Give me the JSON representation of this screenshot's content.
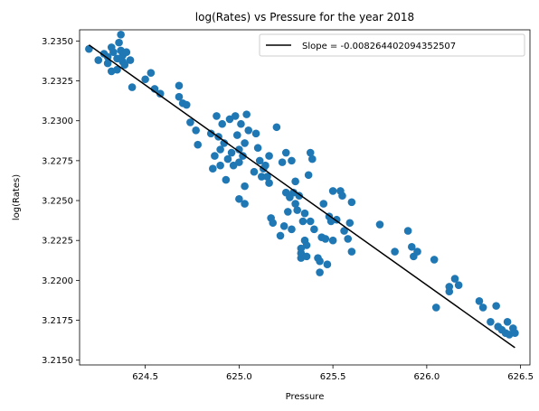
{
  "chart_data": {
    "type": "scatter",
    "title": "log(Rates) vs Pressure for the year 2018",
    "xlabel": "Pressure",
    "ylabel": "log(Rates)",
    "xlim": [
      624.15,
      626.55
    ],
    "ylim": [
      3.2147,
      3.2357
    ],
    "x_ticks": [
      624.5,
      625.0,
      625.5,
      626.0,
      626.5
    ],
    "x_tick_labels": [
      "624.5",
      "625.0",
      "625.5",
      "626.0",
      "626.5"
    ],
    "y_ticks": [
      3.215,
      3.2175,
      3.22,
      3.2225,
      3.225,
      3.2275,
      3.23,
      3.2325,
      3.235
    ],
    "y_tick_labels": [
      "3.2150",
      "3.2175",
      "3.2200",
      "3.2225",
      "3.2250",
      "3.2275",
      "3.2300",
      "3.2325",
      "3.2350"
    ],
    "grid": false,
    "legend": {
      "location": "top-right",
      "entries": [
        "Slope = -0.008264402094352507"
      ]
    },
    "colors": {
      "points": "#1f77b4",
      "fit_line": "#000000"
    },
    "fit_line": {
      "name": "Slope = -0.008264402094352507",
      "x": [
        624.2,
        626.47
      ],
      "y": [
        3.23475,
        3.21578
      ]
    },
    "series": [
      {
        "points": [
          [
            624.2,
            3.2345
          ],
          [
            624.25,
            3.2338
          ],
          [
            624.28,
            3.2342
          ],
          [
            624.3,
            3.2336
          ],
          [
            624.3,
            3.234
          ],
          [
            624.32,
            3.2331
          ],
          [
            624.32,
            3.2346
          ],
          [
            624.33,
            3.2343
          ],
          [
            624.35,
            3.2339
          ],
          [
            624.35,
            3.2332
          ],
          [
            624.36,
            3.2349
          ],
          [
            624.37,
            3.2354
          ],
          [
            624.37,
            3.2344
          ],
          [
            624.38,
            3.2341
          ],
          [
            624.38,
            3.2337
          ],
          [
            624.39,
            3.2335
          ],
          [
            624.4,
            3.2343
          ],
          [
            624.42,
            3.2338
          ],
          [
            624.43,
            3.2321
          ],
          [
            624.5,
            3.2326
          ],
          [
            624.53,
            3.233
          ],
          [
            624.55,
            3.232
          ],
          [
            624.58,
            3.2317
          ],
          [
            624.68,
            3.2322
          ],
          [
            624.68,
            3.2315
          ],
          [
            624.7,
            3.2311
          ],
          [
            624.72,
            3.231
          ],
          [
            624.74,
            3.2299
          ],
          [
            624.77,
            3.2294
          ],
          [
            624.78,
            3.2285
          ],
          [
            624.85,
            3.2292
          ],
          [
            624.86,
            3.227
          ],
          [
            624.87,
            3.2278
          ],
          [
            624.88,
            3.2303
          ],
          [
            624.89,
            3.229
          ],
          [
            624.9,
            3.2282
          ],
          [
            624.9,
            3.2272
          ],
          [
            624.91,
            3.2298
          ],
          [
            624.92,
            3.2286
          ],
          [
            624.93,
            3.2263
          ],
          [
            624.94,
            3.2276
          ],
          [
            624.95,
            3.2301
          ],
          [
            624.96,
            3.228
          ],
          [
            624.97,
            3.2272
          ],
          [
            624.98,
            3.2303
          ],
          [
            624.99,
            3.2291
          ],
          [
            625.0,
            3.2274
          ],
          [
            625.0,
            3.2282
          ],
          [
            625.0,
            3.2251
          ],
          [
            625.01,
            3.2298
          ],
          [
            625.02,
            3.2278
          ],
          [
            625.03,
            3.2286
          ],
          [
            625.03,
            3.2259
          ],
          [
            625.03,
            3.2248
          ],
          [
            625.04,
            3.2304
          ],
          [
            625.05,
            3.2294
          ],
          [
            625.08,
            3.2268
          ],
          [
            625.09,
            3.2292
          ],
          [
            625.1,
            3.2283
          ],
          [
            625.11,
            3.2275
          ],
          [
            625.12,
            3.2265
          ],
          [
            625.13,
            3.227
          ],
          [
            625.14,
            3.2272
          ],
          [
            625.15,
            3.2265
          ],
          [
            625.16,
            3.2261
          ],
          [
            625.16,
            3.2278
          ],
          [
            625.17,
            3.2239
          ],
          [
            625.18,
            3.2236
          ],
          [
            625.2,
            3.2296
          ],
          [
            625.22,
            3.2228
          ],
          [
            625.23,
            3.2274
          ],
          [
            625.24,
            3.2234
          ],
          [
            625.25,
            3.2255
          ],
          [
            625.25,
            3.228
          ],
          [
            625.26,
            3.2243
          ],
          [
            625.27,
            3.2252
          ],
          [
            625.28,
            3.2232
          ],
          [
            625.28,
            3.2275
          ],
          [
            625.29,
            3.2255
          ],
          [
            625.3,
            3.2248
          ],
          [
            625.3,
            3.2262
          ],
          [
            625.31,
            3.2244
          ],
          [
            625.32,
            3.2253
          ],
          [
            625.33,
            3.222
          ],
          [
            625.33,
            3.2214
          ],
          [
            625.33,
            3.2217
          ],
          [
            625.34,
            3.2237
          ],
          [
            625.35,
            3.2225
          ],
          [
            625.35,
            3.2242
          ],
          [
            625.36,
            3.2222
          ],
          [
            625.36,
            3.2215
          ],
          [
            625.37,
            3.2266
          ],
          [
            625.38,
            3.2237
          ],
          [
            625.38,
            3.228
          ],
          [
            625.39,
            3.2276
          ],
          [
            625.4,
            3.2232
          ],
          [
            625.42,
            3.2214
          ],
          [
            625.43,
            3.2205
          ],
          [
            625.43,
            3.2212
          ],
          [
            625.44,
            3.2227
          ],
          [
            625.45,
            3.2248
          ],
          [
            625.46,
            3.2226
          ],
          [
            625.47,
            3.221
          ],
          [
            625.48,
            3.224
          ],
          [
            625.49,
            3.2237
          ],
          [
            625.5,
            3.2225
          ],
          [
            625.5,
            3.2256
          ],
          [
            625.52,
            3.2238
          ],
          [
            625.54,
            3.2256
          ],
          [
            625.55,
            3.2253
          ],
          [
            625.56,
            3.2231
          ],
          [
            625.58,
            3.2226
          ],
          [
            625.59,
            3.2236
          ],
          [
            625.6,
            3.2218
          ],
          [
            625.6,
            3.2249
          ],
          [
            625.75,
            3.2235
          ],
          [
            625.83,
            3.2218
          ],
          [
            625.9,
            3.2231
          ],
          [
            625.92,
            3.2221
          ],
          [
            625.93,
            3.2215
          ],
          [
            625.95,
            3.2218
          ],
          [
            626.04,
            3.2213
          ],
          [
            626.05,
            3.2183
          ],
          [
            626.12,
            3.2196
          ],
          [
            626.12,
            3.2193
          ],
          [
            626.15,
            3.2201
          ],
          [
            626.17,
            3.2197
          ],
          [
            626.28,
            3.2187
          ],
          [
            626.3,
            3.2183
          ],
          [
            626.34,
            3.2174
          ],
          [
            626.37,
            3.2184
          ],
          [
            626.38,
            3.2171
          ],
          [
            626.4,
            3.2169
          ],
          [
            626.42,
            3.2167
          ],
          [
            626.43,
            3.2174
          ],
          [
            626.44,
            3.2166
          ],
          [
            626.46,
            3.217
          ],
          [
            626.47,
            3.2167
          ]
        ]
      }
    ]
  }
}
